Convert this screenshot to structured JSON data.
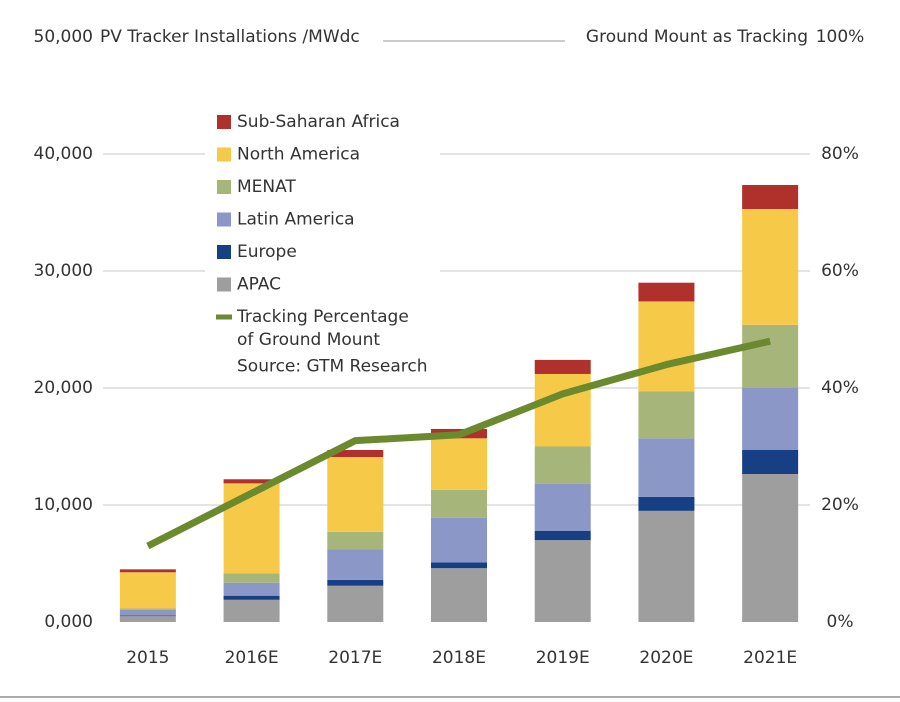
{
  "chart_data": {
    "type": "bar",
    "title": "PV Tracker Installations /MWdc",
    "y2_title": "Ground Mount as Tracking",
    "source": "Source: GTM Research",
    "stacked": true,
    "categories": [
      "2015",
      "2016E",
      "2017E",
      "2018E",
      "2019E",
      "2020E",
      "2021E"
    ],
    "series": [
      {
        "name": "APAC",
        "color": "#9e9e9e",
        "values": [
          500,
          1900,
          3100,
          4600,
          7000,
          9500,
          12650
        ]
      },
      {
        "name": "Europe",
        "color": "#163f84",
        "values": [
          50,
          350,
          500,
          500,
          800,
          1200,
          2050
        ]
      },
      {
        "name": "Latin America",
        "color": "#8b97c6",
        "values": [
          500,
          1100,
          2600,
          3800,
          4000,
          5000,
          5300
        ]
      },
      {
        "name": "MENAT",
        "color": "#a6b57a",
        "values": [
          100,
          800,
          1500,
          2400,
          3200,
          4000,
          5400
        ]
      },
      {
        "name": "North America",
        "color": "#f7c948",
        "values": [
          3100,
          7700,
          6400,
          4400,
          6200,
          7700,
          9900
        ]
      },
      {
        "name": "Sub-Saharan Africa",
        "color": "#b0312b",
        "values": [
          250,
          350,
          600,
          800,
          1200,
          1600,
          2050
        ]
      },
      {
        "name": "Tracking Percentage of Ground Mount",
        "color": "#6b8a2e",
        "type": "line",
        "axis": "y2",
        "values": [
          13,
          22,
          31,
          32,
          39,
          44,
          48
        ]
      }
    ],
    "ylim": [
      0,
      50000
    ],
    "yticks": [
      {
        "value": 0,
        "label": "0,000"
      },
      {
        "value": 10000,
        "label": "10,000"
      },
      {
        "value": 20000,
        "label": "20,000"
      },
      {
        "value": 30000,
        "label": "30,000"
      },
      {
        "value": 40000,
        "label": "40,000"
      },
      {
        "value": 50000,
        "label": "50,000"
      }
    ],
    "y2lim": [
      0,
      100
    ],
    "y2ticks": [
      {
        "value": 0,
        "label": "0%"
      },
      {
        "value": 20,
        "label": "20%"
      },
      {
        "value": 40,
        "label": "40%"
      },
      {
        "value": 60,
        "label": "60%"
      },
      {
        "value": 80,
        "label": "80%"
      },
      {
        "value": 100,
        "label": "100%"
      }
    ],
    "grid": true,
    "legend": "upper-left"
  }
}
